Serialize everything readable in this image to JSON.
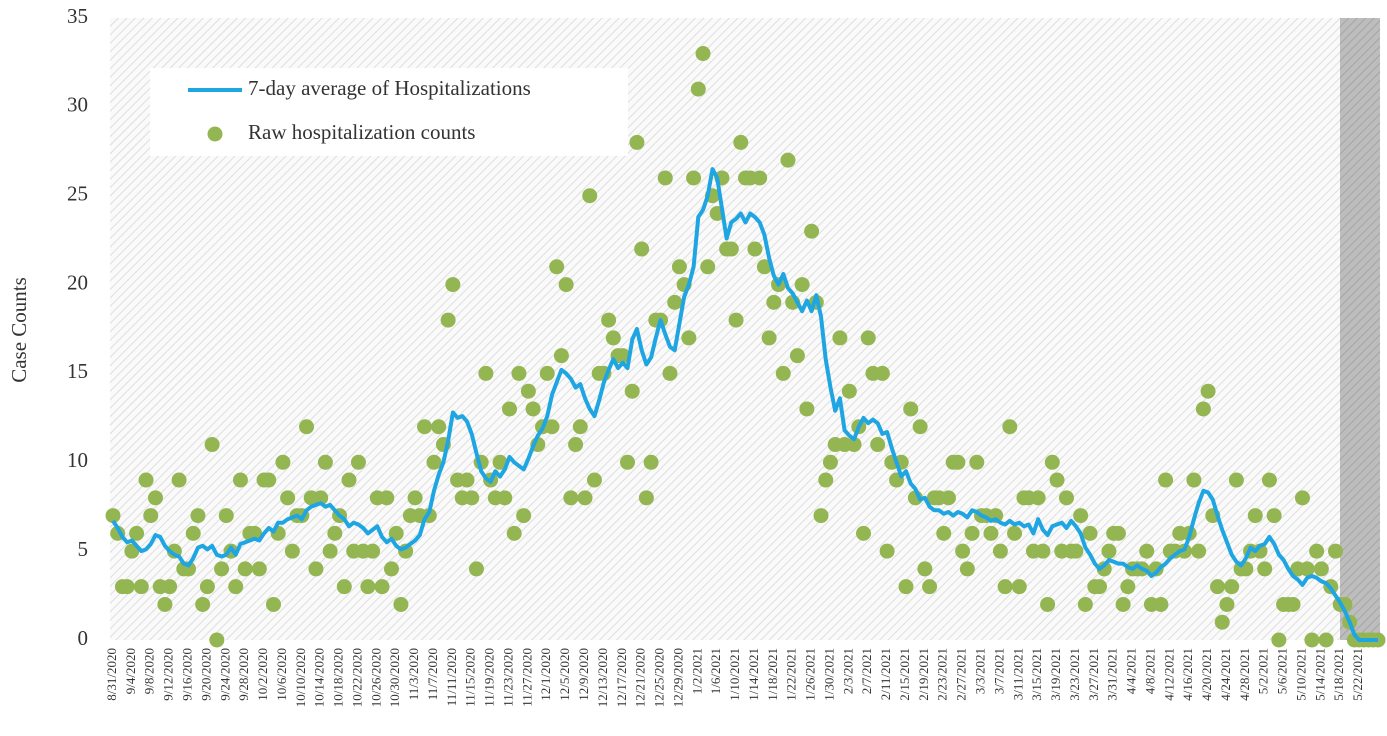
{
  "chart_data": {
    "type": "line",
    "ylabel": "Case Counts",
    "legend": "upper left",
    "categories": [
      "8/31/2020",
      null,
      null,
      null,
      "9/4/2020",
      null,
      null,
      null,
      "9/8/2020",
      null,
      null,
      null,
      "9/12/2020",
      null,
      null,
      null,
      "9/16/2020",
      null,
      null,
      null,
      "9/20/2020",
      null,
      null,
      null,
      "9/24/2020",
      null,
      null,
      null,
      "9/28/2020",
      null,
      null,
      null,
      "10/2/2020",
      null,
      null,
      null,
      "10/6/2020",
      null,
      null,
      null,
      "10/10/2020",
      null,
      null,
      null,
      "10/14/2020",
      null,
      null,
      null,
      "10/18/2020",
      null,
      null,
      null,
      "10/22/2020",
      null,
      null,
      null,
      "10/26/2020",
      null,
      null,
      null,
      "10/30/2020",
      null,
      null,
      null,
      "11/3/2020",
      null,
      null,
      null,
      "11/7/2020",
      null,
      null,
      null,
      "11/11/2020",
      null,
      null,
      null,
      "11/15/2020",
      null,
      null,
      null,
      "11/19/2020",
      null,
      null,
      null,
      "11/23/2020",
      null,
      null,
      null,
      "11/27/2020",
      null,
      null,
      null,
      "12/1/2020",
      null,
      null,
      null,
      "12/5/2020",
      null,
      null,
      null,
      "12/9/2020",
      null,
      null,
      null,
      "12/13/2020",
      null,
      null,
      null,
      "12/17/2020",
      null,
      null,
      null,
      "12/21/2020",
      null,
      null,
      null,
      "12/25/2020",
      null,
      null,
      null,
      "12/29/2020",
      null,
      null,
      null,
      "1/2/2021",
      null,
      null,
      null,
      "1/6/2021",
      null,
      null,
      null,
      "1/10/2021",
      null,
      null,
      null,
      "1/14/2021",
      null,
      null,
      null,
      "1/18/2021",
      null,
      null,
      null,
      "1/22/2021",
      null,
      null,
      null,
      "1/26/2021",
      null,
      null,
      null,
      "1/30/2021",
      null,
      null,
      null,
      "2/3/2021",
      null,
      null,
      null,
      "2/7/2021",
      null,
      null,
      null,
      "2/11/2021",
      null,
      null,
      null,
      "2/15/2021",
      null,
      null,
      null,
      "2/19/2021",
      null,
      null,
      null,
      "2/23/2021",
      null,
      null,
      null,
      "2/27/2021",
      null,
      null,
      null,
      "3/3/2021",
      null,
      null,
      null,
      "3/7/2021",
      null,
      null,
      null,
      "3/11/2021",
      null,
      null,
      null,
      "3/15/2021",
      null,
      null,
      null,
      "3/19/2021",
      null,
      null,
      null,
      "3/23/2021",
      null,
      null,
      null,
      "3/27/2021",
      null,
      null,
      null,
      "3/31/2021",
      null,
      null,
      null,
      "4/4/2021",
      null,
      null,
      null,
      "4/8/2021",
      null,
      null,
      null,
      "4/12/2021",
      null,
      null,
      null,
      "4/16/2021",
      null,
      null,
      null,
      "4/20/2021",
      null,
      null,
      null,
      "4/24/2021",
      null,
      null,
      null,
      "4/28/2021",
      null,
      null,
      null,
      "5/2/2021",
      null,
      null,
      null,
      "5/6/2021",
      null,
      null,
      null,
      "5/10/2021",
      null,
      null,
      null,
      "5/14/2021",
      null,
      null,
      null,
      "5/18/2021",
      null,
      null,
      null,
      "5/22/2021",
      null,
      null,
      null,
      null
    ],
    "series": [
      {
        "name": "7-day average of Hospitalizations",
        "type": "line",
        "color": "#1ea5e2",
        "values": [
          6.7,
          6.3,
          5.8,
          5.5,
          5.6,
          5.3,
          5.0,
          5.1,
          5.4,
          5.9,
          5.8,
          5.3,
          5.0,
          4.8,
          4.7,
          4.3,
          4.2,
          4.6,
          5.2,
          5.3,
          5.1,
          5.3,
          4.8,
          4.7,
          4.8,
          5.2,
          4.8,
          5.4,
          5.5,
          5.6,
          5.7,
          5.6,
          6.0,
          6.3,
          6.1,
          6.6,
          6.6,
          6.8,
          6.9,
          7.0,
          6.8,
          7.3,
          7.5,
          7.6,
          7.7,
          7.5,
          7.6,
          7.3,
          7.0,
          6.8,
          6.4,
          6.6,
          6.5,
          6.3,
          6.0,
          6.2,
          6.4,
          5.8,
          5.5,
          5.7,
          5.3,
          5.1,
          5.2,
          5.4,
          5.6,
          5.9,
          6.8,
          7.2,
          8.4,
          9.3,
          10.0,
          11.2,
          12.8,
          12.5,
          12.6,
          12.3,
          11.6,
          10.5,
          9.5,
          9.1,
          8.9,
          9.5,
          9.2,
          9.6,
          10.3,
          10.0,
          9.8,
          9.6,
          10.2,
          10.9,
          11.5,
          11.9,
          12.6,
          13.8,
          14.5,
          15.2,
          15.0,
          14.7,
          14.2,
          14.4,
          13.6,
          13.0,
          12.6,
          13.5,
          14.5,
          15.2,
          15.8,
          15.3,
          15.6,
          15.3,
          16.9,
          17.5,
          16.3,
          15.5,
          15.9,
          17.0,
          18.0,
          17.2,
          16.5,
          16.3,
          17.8,
          19.3,
          20.0,
          21.0,
          23.8,
          24.2,
          25.0,
          26.5,
          26.0,
          24.3,
          22.6,
          23.5,
          23.7,
          24.0,
          23.5,
          24.0,
          23.8,
          23.5,
          22.8,
          21.5,
          20.5,
          20.0,
          20.6,
          19.8,
          19.5,
          19.0,
          18.5,
          19.1,
          18.5,
          19.4,
          18.2,
          15.8,
          14.2,
          12.9,
          13.6,
          11.8,
          11.5,
          11.3,
          12.0,
          12.5,
          12.2,
          12.4,
          12.2,
          11.6,
          11.7,
          10.8,
          10.0,
          9.2,
          9.5,
          8.8,
          8.5,
          7.9,
          8.0,
          7.5,
          7.3,
          7.3,
          7.1,
          7.2,
          7.0,
          7.2,
          7.1,
          6.9,
          7.3,
          7.2,
          7.0,
          6.9,
          6.7,
          6.8,
          6.6,
          6.5,
          6.7,
          6.5,
          6.6,
          6.4,
          6.5,
          6.0,
          6.8,
          6.2,
          5.9,
          6.4,
          6.5,
          6.6,
          6.3,
          6.7,
          6.4,
          6.0,
          5.2,
          4.8,
          4.3,
          4.0,
          4.2,
          4.5,
          4.4,
          4.3,
          4.3,
          4.1,
          4.0,
          4.2,
          4.0,
          3.9,
          3.6,
          3.8,
          4.1,
          4.3,
          4.6,
          4.8,
          5.0,
          5.1,
          5.8,
          6.8,
          7.7,
          8.4,
          8.3,
          7.9,
          7.0,
          6.2,
          5.5,
          4.8,
          4.4,
          4.2,
          4.6,
          5.2,
          5.0,
          5.3,
          5.4,
          5.8,
          5.4,
          4.8,
          4.5,
          4.0,
          3.6,
          3.4,
          3.1,
          3.5,
          3.6,
          3.5,
          3.3,
          3.2,
          2.9,
          2.5,
          2.1,
          1.6,
          1.0,
          0.3,
          0,
          0,
          0,
          0,
          0
        ]
      },
      {
        "name": "Raw hospitalization counts",
        "type": "scatter",
        "color": "#93b653",
        "values": [
          7,
          6,
          3,
          3,
          5,
          6,
          3,
          9,
          7,
          8,
          3,
          2,
          3,
          5,
          9,
          4,
          4,
          6,
          7,
          2,
          3,
          11,
          0,
          4,
          7,
          5,
          3,
          9,
          4,
          6,
          6,
          4,
          9,
          9,
          2,
          6,
          10,
          8,
          5,
          7,
          7,
          12,
          8,
          4,
          8,
          10,
          5,
          6,
          7,
          3,
          9,
          5,
          10,
          5,
          3,
          5,
          8,
          3,
          8,
          4,
          6,
          2,
          5,
          7,
          8,
          7,
          12,
          7,
          10,
          12,
          11,
          18,
          20,
          9,
          8,
          9,
          8,
          4,
          10,
          15,
          9,
          8,
          10,
          8,
          13,
          6,
          15,
          7,
          14,
          13,
          11,
          12,
          15,
          12,
          21,
          16,
          20,
          8,
          11,
          12,
          8,
          25,
          9,
          15,
          15,
          18,
          17,
          16,
          16,
          10,
          14,
          28,
          22,
          8,
          10,
          18,
          18,
          26,
          15,
          19,
          21,
          20,
          17,
          26,
          31,
          33,
          21,
          25,
          24,
          26,
          22,
          22,
          18,
          28,
          26,
          26,
          22,
          26,
          21,
          17,
          19,
          20,
          15,
          27,
          19,
          16,
          20,
          13,
          23,
          19,
          7,
          9,
          10,
          11,
          17,
          11,
          14,
          11,
          12,
          6,
          17,
          15,
          11,
          15,
          5,
          10,
          9,
          10,
          3,
          13,
          8,
          12,
          4,
          3,
          8,
          8,
          6,
          8,
          10,
          10,
          5,
          4,
          6,
          10,
          7,
          7,
          6,
          7,
          5,
          3,
          12,
          6,
          3,
          8,
          8,
          5,
          8,
          5,
          2,
          10,
          9,
          5,
          8,
          5,
          5,
          7,
          2,
          6,
          3,
          3,
          4,
          5,
          6,
          6,
          2,
          3,
          4,
          4,
          4,
          5,
          2,
          4,
          2,
          9,
          5,
          5,
          6,
          5,
          6,
          9,
          5,
          13,
          14,
          7,
          3,
          1,
          2,
          3,
          9,
          4,
          4,
          5,
          7,
          5,
          4,
          9,
          7,
          0,
          2,
          2,
          2,
          4,
          8,
          4,
          0,
          5,
          4,
          0,
          3,
          5,
          2,
          2,
          1,
          0,
          0,
          0,
          0,
          0,
          0
        ]
      }
    ],
    "ylim": [
      0,
      35
    ],
    "yticks": [
      0,
      5,
      10,
      15,
      20,
      25,
      30,
      35
    ]
  }
}
